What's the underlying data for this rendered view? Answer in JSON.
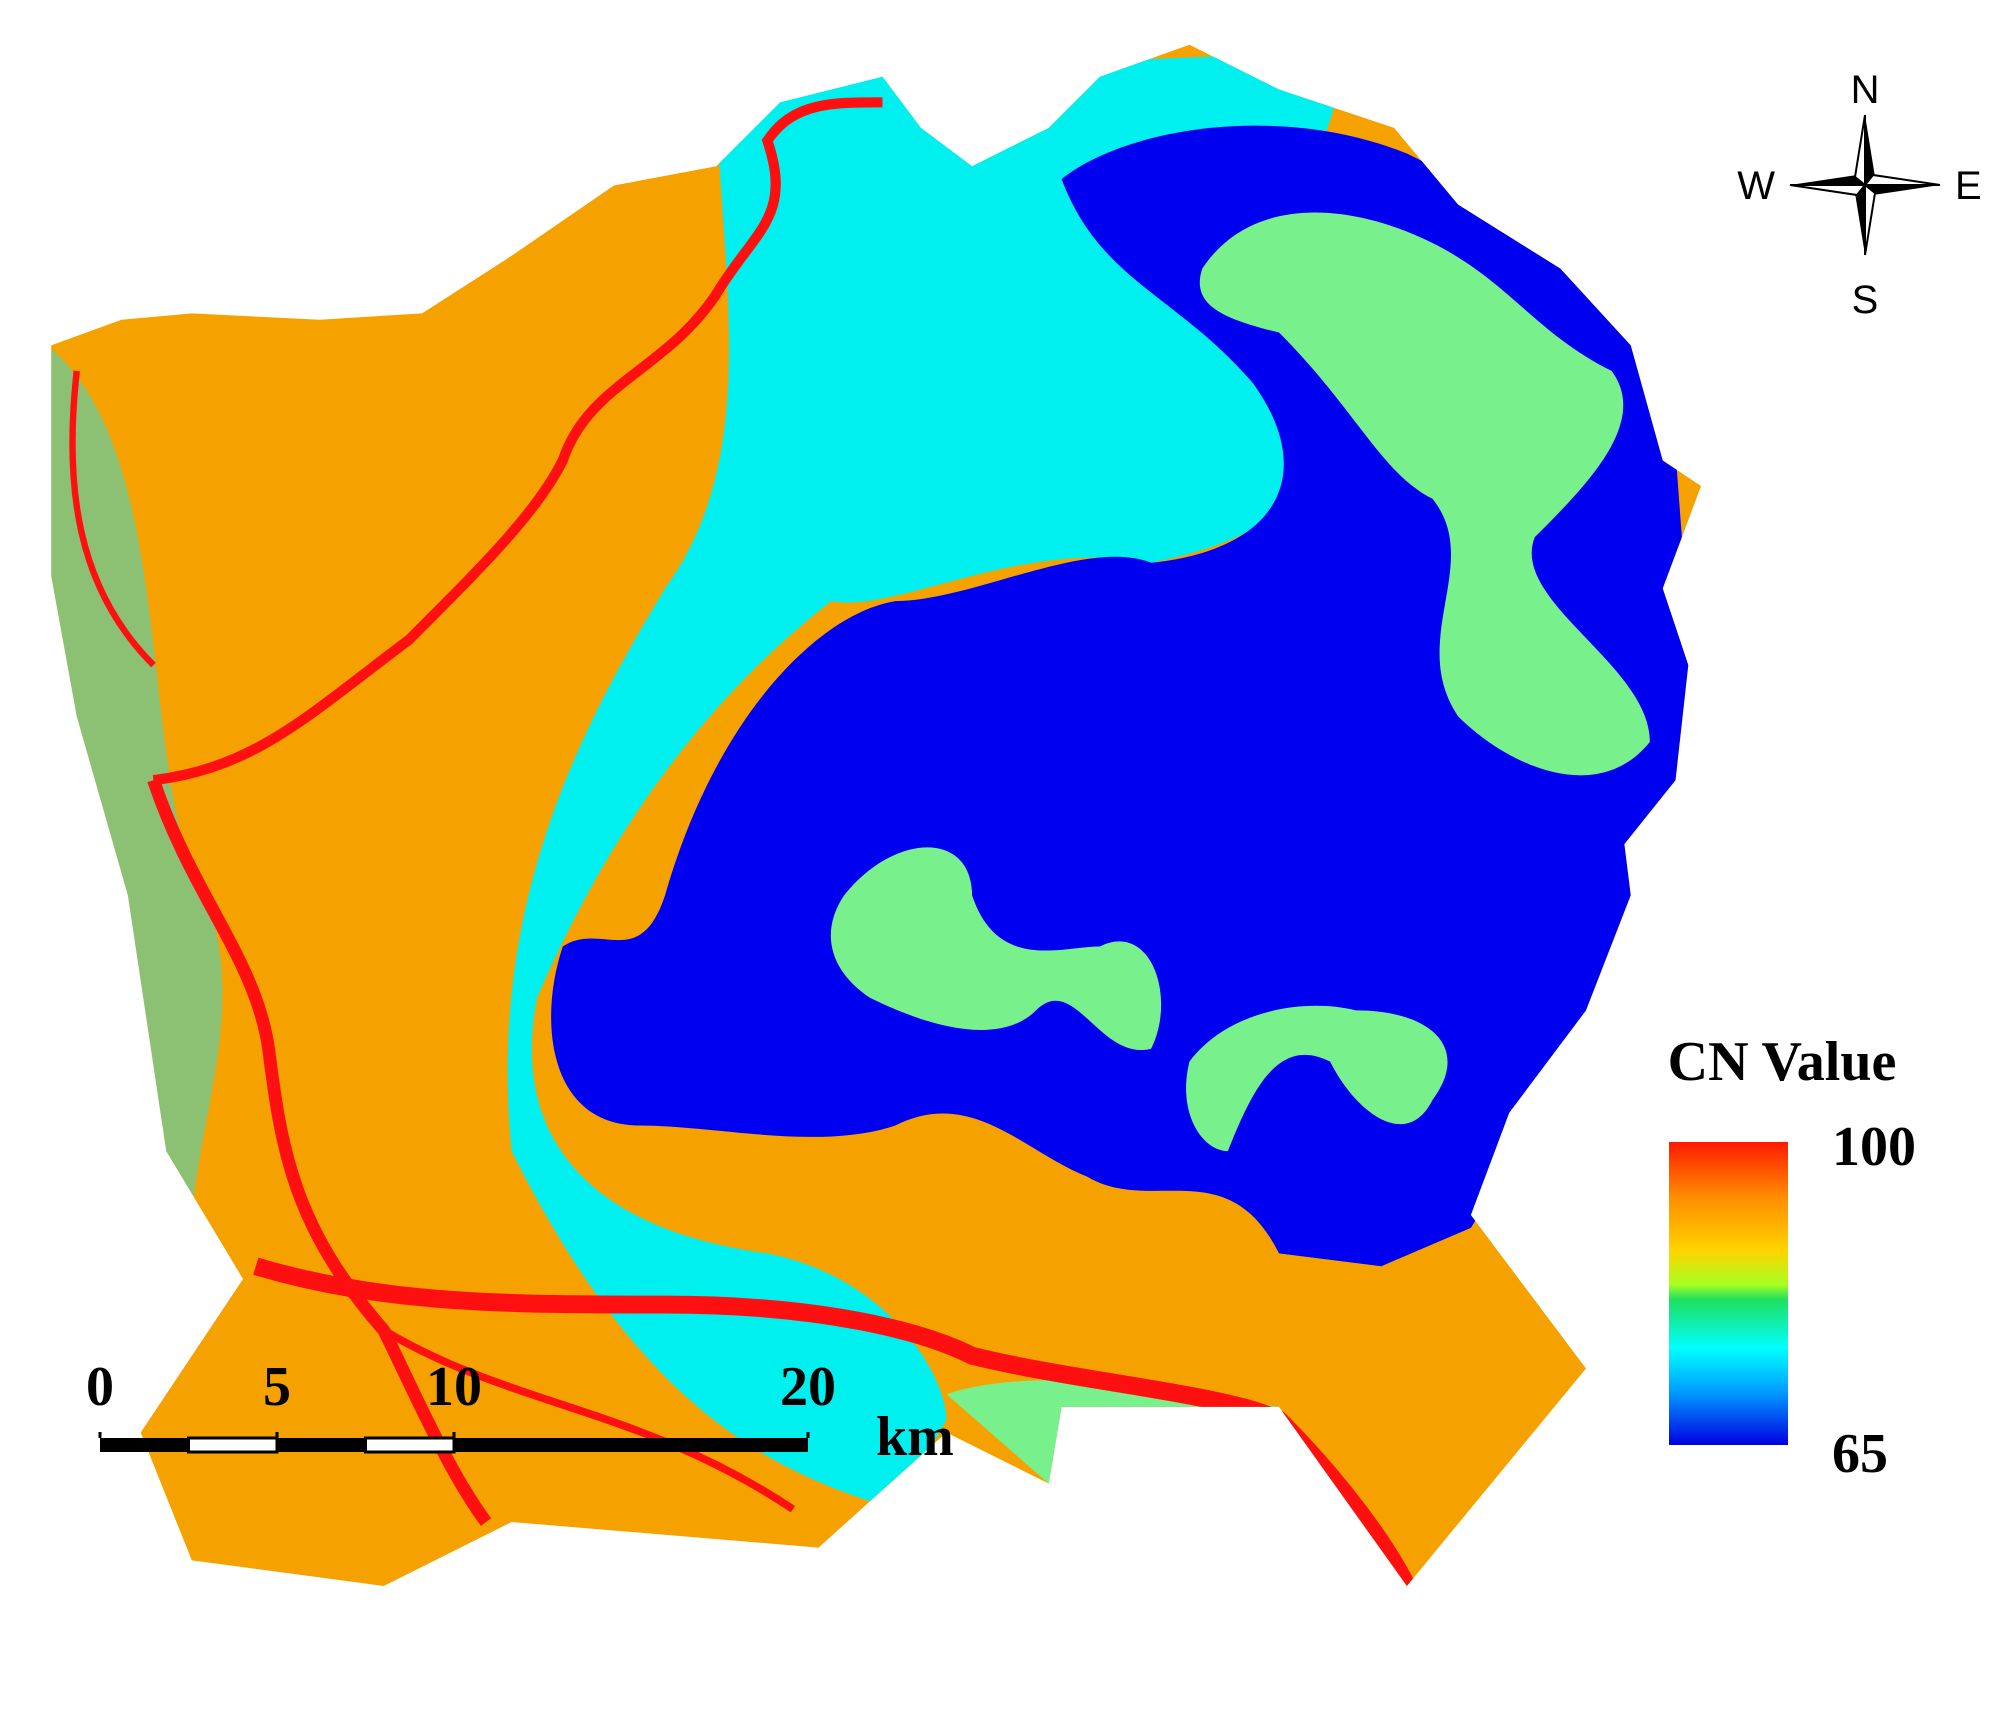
{
  "compass": {
    "north": "N",
    "south": "S",
    "west": "W",
    "east": "E"
  },
  "legend": {
    "title": "CN Value",
    "max": 100,
    "min": 65
  },
  "scale_bar": {
    "ticks": [
      0,
      5,
      10,
      20
    ],
    "unit": "km"
  }
}
